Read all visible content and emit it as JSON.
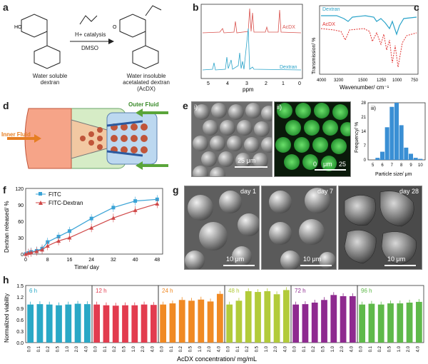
{
  "panel_a": {
    "label": "a",
    "reagents_top": "H+ catalysis",
    "reagents_bottom": "DMSO",
    "left_caption": [
      "Water soluble",
      "dextran"
    ],
    "right_caption": [
      "Water insoluble",
      "acetalated dextran",
      "(AcDX)"
    ]
  },
  "panel_b": {
    "label": "b",
    "xlabel": "ppm",
    "ticks": [
      "5",
      "4",
      "3",
      "2",
      "1",
      "0"
    ],
    "trace_top": "AcDX",
    "trace_bottom": "Dextran",
    "colors": {
      "acdx": "#d9534f",
      "dextran": "#2aa3c9"
    }
  },
  "panel_c": {
    "label": "c",
    "ylabel": "Transmission/ %",
    "xlabel": "Wavenumber/ cm⁻¹",
    "ticks": [
      "4000",
      "3200",
      "1500",
      "1250",
      "1000",
      "750"
    ],
    "legend": [
      "Dextran",
      "AcDX"
    ],
    "colors": {
      "dextran": "#2aa3c9",
      "acdx": "#e0302e"
    }
  },
  "panel_d": {
    "label": "d",
    "inner_fluid": "Inner Fluid",
    "outer_fluid": "Outer Fluid"
  },
  "panel_e": {
    "label": "e",
    "sub_i": "i)",
    "sub_ii": "ii)",
    "sub_iii": "iii)",
    "scale_i": "25 μm",
    "scale_ii": [
      "0",
      "μm",
      "25"
    ],
    "chart_data": {
      "type": "bar",
      "categories": [
        "5",
        "6",
        "7",
        "8",
        "9",
        "10"
      ],
      "x": [
        5.5,
        6,
        6.5,
        7,
        7.5,
        8,
        8.5,
        9,
        9.5,
        10
      ],
      "values": [
        1,
        4,
        16,
        26,
        28,
        17,
        6,
        3,
        1,
        0.5
      ],
      "ylim": [
        0,
        28
      ],
      "yticks": [
        "0",
        "7",
        "14",
        "21",
        "28"
      ],
      "xlabel": "Particle size/ μm",
      "ylabel": "Frequency/ %"
    }
  },
  "panel_f": {
    "label": "f",
    "chart_data": {
      "type": "line",
      "x": [
        0,
        1,
        2,
        4,
        6,
        8,
        12,
        16,
        24,
        32,
        40,
        48
      ],
      "series": [
        {
          "name": "FITC",
          "values": [
            0,
            2,
            4,
            6,
            10,
            22,
            32,
            42,
            65,
            85,
            97,
            100
          ]
        },
        {
          "name": "FITC-Dextran",
          "values": [
            0,
            2,
            3,
            5,
            8,
            15,
            24,
            30,
            48,
            66,
            80,
            92
          ]
        }
      ],
      "xlabel": "Time/ day",
      "ylabel": "Dextran released/ %",
      "xlim": [
        0,
        50
      ],
      "ylim": [
        0,
        120
      ],
      "xticks": [
        "0",
        "8",
        "16",
        "24",
        "32",
        "40",
        "48"
      ],
      "yticks": [
        "0",
        "30",
        "60",
        "90",
        "120"
      ],
      "colors": {
        "FITC": "#3aa3d6",
        "FITC-Dextran": "#d04848"
      }
    }
  },
  "panel_g": {
    "label": "g",
    "days": [
      "day 1",
      "day 7",
      "day 28"
    ],
    "scale": "10 μm"
  },
  "panel_h": {
    "label": "h",
    "chart_data": {
      "type": "bar",
      "categories": [
        "0.0",
        "0.1",
        "0.2",
        "0.5",
        "1.0",
        "2.0",
        "4.0"
      ],
      "ylabel": "Normalized viability",
      "xlabel": "AcDX concentration/ mg/mL",
      "ylim": [
        0,
        1.5
      ],
      "yticks": [
        "0.0",
        "0.3",
        "0.6",
        "0.9",
        "1.2",
        "1.5"
      ],
      "groups": [
        {
          "name": "6 h",
          "color": "#2aa8c6",
          "values": [
            1.0,
            1.01,
            1.0,
            0.98,
            1.0,
            1.02,
            1.01
          ]
        },
        {
          "name": "12 h",
          "color": "#e23c4f",
          "values": [
            1.0,
            0.98,
            0.97,
            0.98,
            0.98,
            1.0,
            0.99
          ]
        },
        {
          "name": "24 h",
          "color": "#f08a24",
          "values": [
            1.0,
            1.03,
            1.12,
            1.1,
            1.13,
            1.08,
            1.28
          ]
        },
        {
          "name": "48 h",
          "color": "#b2cb3a",
          "values": [
            1.0,
            1.1,
            1.35,
            1.33,
            1.35,
            1.27,
            1.38
          ]
        },
        {
          "name": "72 h",
          "color": "#8e2a8f",
          "values": [
            1.0,
            1.01,
            1.05,
            1.12,
            1.25,
            1.22,
            1.22
          ]
        },
        {
          "name": "96 h",
          "color": "#5fb94a",
          "values": [
            1.0,
            1.02,
            1.0,
            1.03,
            1.03,
            1.05,
            1.07
          ]
        }
      ]
    }
  }
}
